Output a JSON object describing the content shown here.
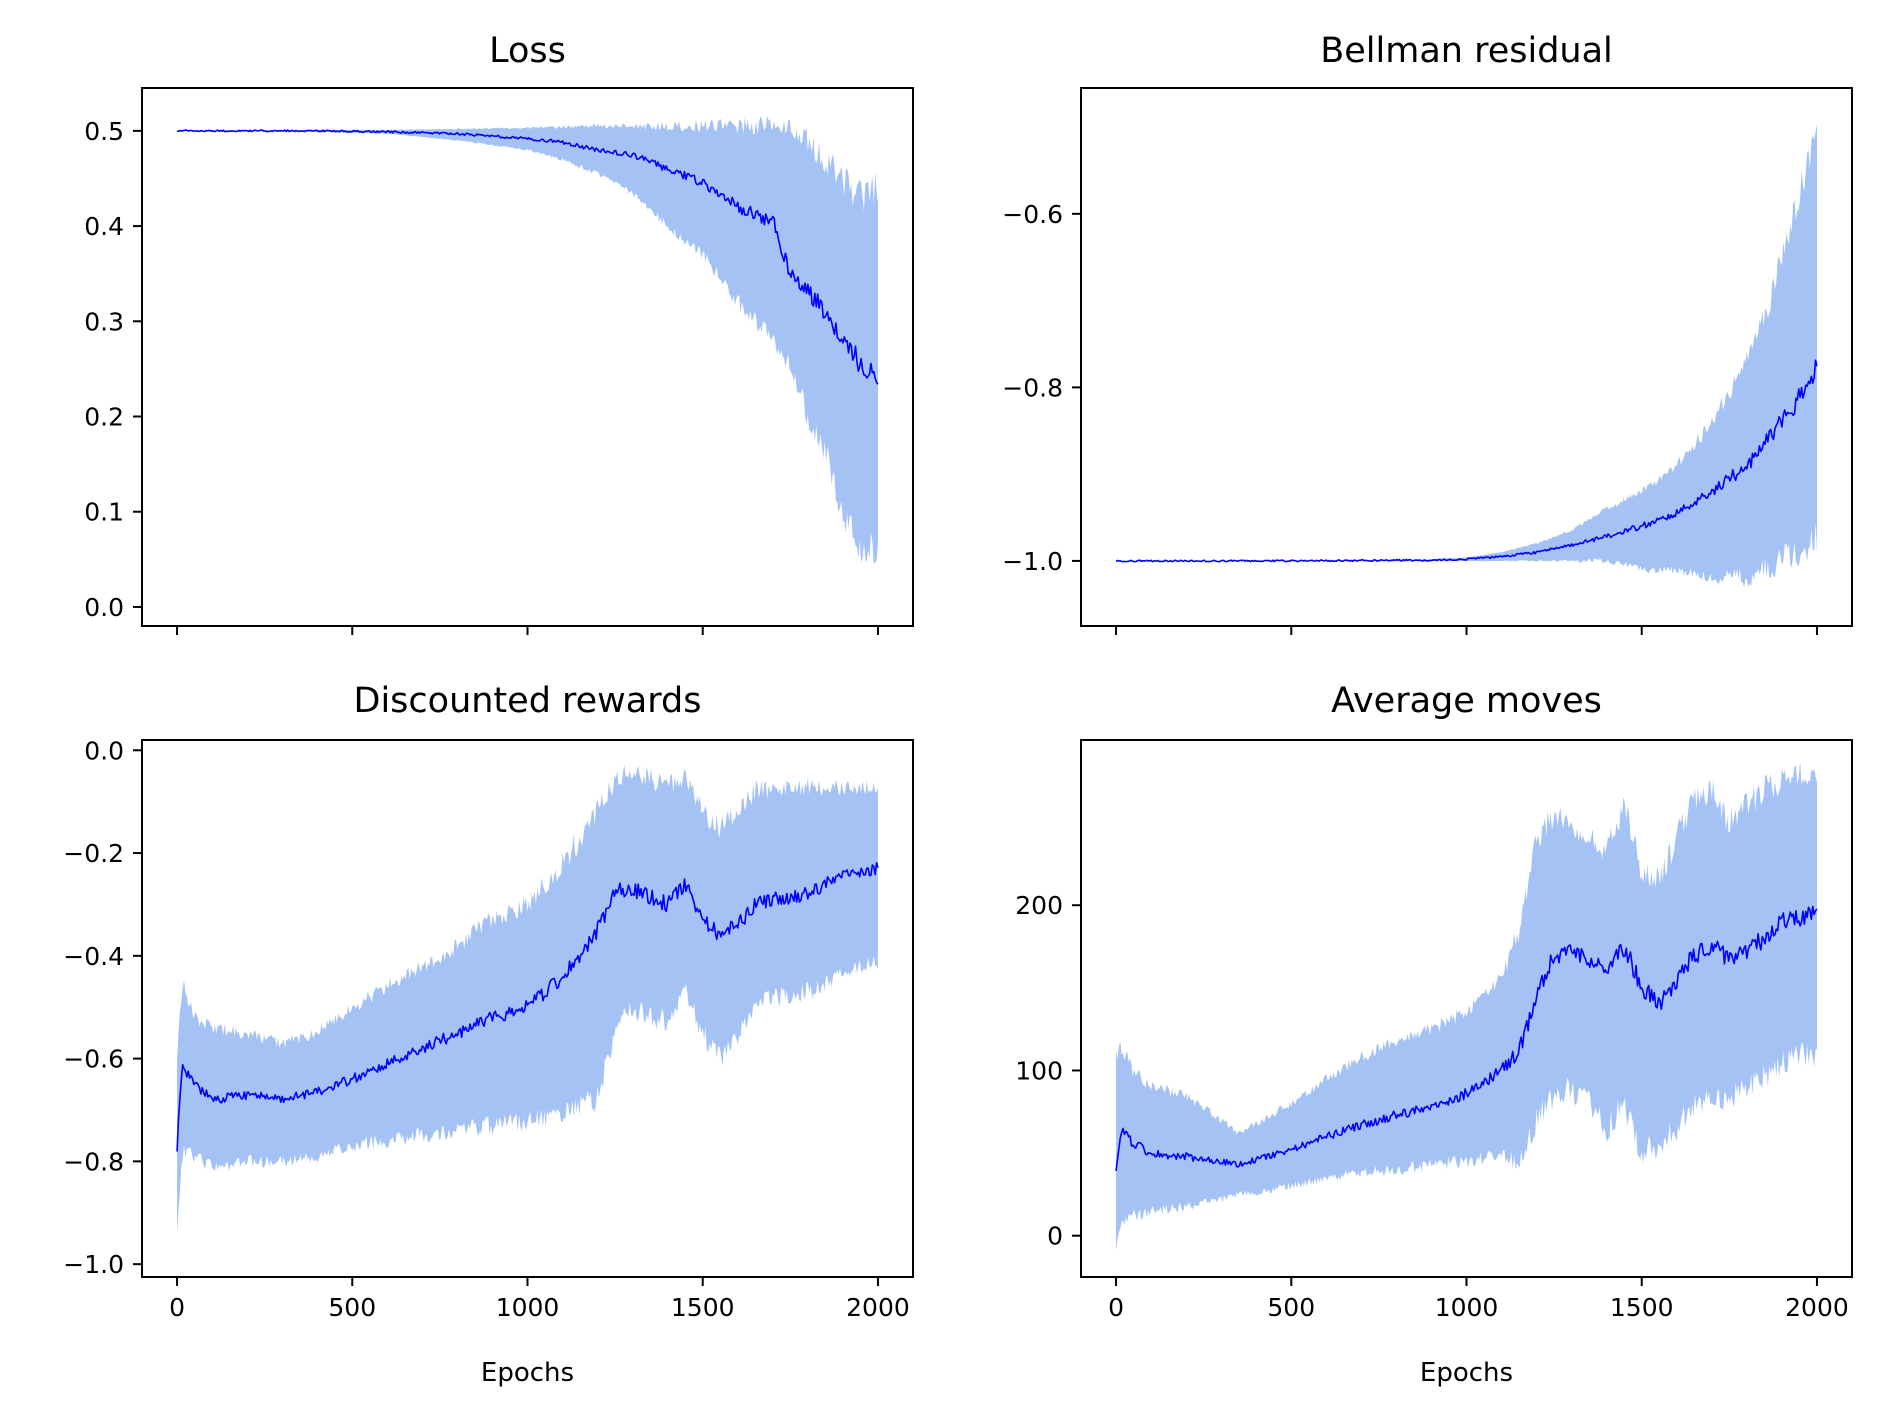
{
  "figure": {
    "background": "#ffffff",
    "band_color": "#a4c2f4",
    "line_color": "#0000ff"
  },
  "chart_data": [
    {
      "id": "loss",
      "type": "line",
      "title": "Loss",
      "xlabel": "",
      "ylabel": "",
      "xlim": [
        -100,
        2100
      ],
      "ylim": [
        -0.02,
        0.545
      ],
      "xticks": [
        0,
        500,
        1000,
        1500,
        2000
      ],
      "xtick_labels": [
        "",
        "",
        "",
        "",
        ""
      ],
      "yticks": [
        0.0,
        0.1,
        0.2,
        0.3,
        0.4,
        0.5
      ],
      "ytick_labels": [
        "0.0",
        "0.1",
        "0.2",
        "0.3",
        "0.4",
        "0.5"
      ],
      "grid": false,
      "series": [
        {
          "style": "mean line with shaded band",
          "x": [
            0,
            200,
            400,
            600,
            800,
            1000,
            1100,
            1200,
            1300,
            1400,
            1500,
            1600,
            1700,
            1750,
            1800,
            1850,
            1900,
            1950,
            2000
          ],
          "mean": [
            0.5,
            0.5,
            0.5,
            0.499,
            0.497,
            0.492,
            0.488,
            0.48,
            0.475,
            0.46,
            0.445,
            0.42,
            0.405,
            0.35,
            0.33,
            0.31,
            0.285,
            0.255,
            0.245
          ],
          "lower": [
            0.5,
            0.5,
            0.499,
            0.497,
            0.49,
            0.48,
            0.47,
            0.455,
            0.435,
            0.4,
            0.37,
            0.32,
            0.28,
            0.25,
            0.2,
            0.16,
            0.1,
            0.06,
            0.06
          ],
          "upper": [
            0.5,
            0.5,
            0.501,
            0.501,
            0.502,
            0.503,
            0.504,
            0.505,
            0.505,
            0.505,
            0.505,
            0.505,
            0.505,
            0.5,
            0.49,
            0.47,
            0.45,
            0.43,
            0.44
          ]
        }
      ]
    },
    {
      "id": "bellman",
      "type": "line",
      "title": "Bellman residual",
      "xlabel": "",
      "ylabel": "",
      "xlim": [
        -100,
        2100
      ],
      "ylim": [
        -1.075,
        -0.455
      ],
      "xticks": [
        0,
        500,
        1000,
        1500,
        2000
      ],
      "xtick_labels": [
        "",
        "",
        "",
        "",
        ""
      ],
      "yticks": [
        -1.0,
        -0.8,
        -0.6
      ],
      "ytick_labels": [
        "−1.0",
        "−0.8",
        "−0.6"
      ],
      "grid": false,
      "series": [
        {
          "style": "mean line with shaded band",
          "x": [
            0,
            500,
            900,
            1000,
            1100,
            1200,
            1300,
            1400,
            1500,
            1600,
            1700,
            1800,
            1850,
            1900,
            1950,
            2000
          ],
          "mean": [
            -1.0,
            -1.0,
            -0.999,
            -0.998,
            -0.995,
            -0.99,
            -0.982,
            -0.972,
            -0.96,
            -0.945,
            -0.92,
            -0.89,
            -0.865,
            -0.84,
            -0.81,
            -0.78
          ],
          "lower": [
            -1.0,
            -1.0,
            -1.0,
            -1.0,
            -1.0,
            -1.0,
            -1.0,
            -1.0,
            -1.01,
            -1.01,
            -1.02,
            -1.02,
            -1.01,
            -1.0,
            -0.99,
            -0.97
          ],
          "upper": [
            -1.0,
            -1.0,
            -0.998,
            -0.996,
            -0.99,
            -0.98,
            -0.965,
            -0.94,
            -0.92,
            -0.89,
            -0.84,
            -0.77,
            -0.72,
            -0.65,
            -0.58,
            -0.5
          ]
        }
      ]
    },
    {
      "id": "rewards",
      "type": "line",
      "title": "Discounted rewards",
      "xlabel": "Epochs",
      "ylabel": "",
      "xlim": [
        -100,
        2100
      ],
      "ylim": [
        -1.025,
        0.02
      ],
      "xticks": [
        0,
        500,
        1000,
        1500,
        2000
      ],
      "xtick_labels": [
        "0",
        "500",
        "1000",
        "1500",
        "2000"
      ],
      "yticks": [
        -1.0,
        -0.8,
        -0.6,
        -0.4,
        -0.2,
        0.0
      ],
      "ytick_labels": [
        "−1.0",
        "−0.8",
        "−0.6",
        "−0.4",
        "−0.2",
        "0.0"
      ],
      "grid": false,
      "series": [
        {
          "style": "mean line with shaded band",
          "x": [
            0,
            15,
            50,
            100,
            200,
            300,
            400,
            500,
            600,
            700,
            800,
            900,
            1000,
            1100,
            1200,
            1250,
            1300,
            1400,
            1450,
            1500,
            1550,
            1600,
            1650,
            1700,
            1800,
            1900,
            2000
          ],
          "mean": [
            -0.77,
            -0.62,
            -0.65,
            -0.68,
            -0.67,
            -0.68,
            -0.665,
            -0.64,
            -0.61,
            -0.58,
            -0.55,
            -0.52,
            -0.5,
            -0.44,
            -0.35,
            -0.27,
            -0.27,
            -0.3,
            -0.26,
            -0.33,
            -0.36,
            -0.34,
            -0.3,
            -0.29,
            -0.28,
            -0.24,
            -0.23
          ],
          "lower": [
            -0.95,
            -0.78,
            -0.79,
            -0.81,
            -0.8,
            -0.8,
            -0.79,
            -0.77,
            -0.76,
            -0.75,
            -0.74,
            -0.73,
            -0.72,
            -0.71,
            -0.68,
            -0.55,
            -0.5,
            -0.53,
            -0.46,
            -0.55,
            -0.6,
            -0.56,
            -0.5,
            -0.48,
            -0.47,
            -0.43,
            -0.41
          ],
          "upper": [
            -0.6,
            -0.45,
            -0.52,
            -0.54,
            -0.55,
            -0.57,
            -0.55,
            -0.5,
            -0.46,
            -0.42,
            -0.38,
            -0.33,
            -0.3,
            -0.22,
            -0.12,
            -0.05,
            -0.04,
            -0.07,
            -0.05,
            -0.12,
            -0.15,
            -0.12,
            -0.08,
            -0.08,
            -0.07,
            -0.07,
            -0.07
          ]
        }
      ]
    },
    {
      "id": "moves",
      "type": "line",
      "title": "Average moves",
      "xlabel": "Epochs",
      "ylabel": "",
      "xlim": [
        -100,
        2100
      ],
      "ylim": [
        -25,
        300
      ],
      "xticks": [
        0,
        500,
        1000,
        1500,
        2000
      ],
      "xtick_labels": [
        "0",
        "500",
        "1000",
        "1500",
        "2000"
      ],
      "yticks": [
        0,
        100,
        200
      ],
      "ytick_labels": [
        "0",
        "100",
        "200"
      ],
      "grid": false,
      "series": [
        {
          "style": "mean line with shaded band",
          "x": [
            0,
            15,
            50,
            100,
            200,
            300,
            350,
            400,
            500,
            600,
            700,
            800,
            900,
            1000,
            1100,
            1150,
            1200,
            1250,
            1300,
            1350,
            1400,
            1450,
            1500,
            1550,
            1600,
            1650,
            1700,
            1750,
            1800,
            1850,
            1900,
            1950,
            2000
          ],
          "mean": [
            38,
            63,
            56,
            50,
            48,
            45,
            43,
            46,
            52,
            60,
            67,
            73,
            78,
            86,
            100,
            112,
            145,
            170,
            172,
            168,
            160,
            175,
            150,
            140,
            155,
            170,
            175,
            168,
            172,
            180,
            190,
            192,
            195
          ],
          "lower": [
            -10,
            10,
            12,
            15,
            18,
            22,
            25,
            26,
            30,
            35,
            38,
            40,
            43,
            45,
            48,
            45,
            70,
            85,
            88,
            80,
            65,
            80,
            50,
            55,
            65,
            80,
            85,
            82,
            90,
            95,
            105,
            110,
            110
          ],
          "upper": [
            110,
            115,
            100,
            90,
            85,
            70,
            62,
            68,
            80,
            95,
            108,
            118,
            125,
            135,
            155,
            185,
            240,
            255,
            250,
            240,
            235,
            260,
            220,
            215,
            240,
            265,
            270,
            250,
            260,
            270,
            275,
            280,
            280
          ]
        }
      ]
    }
  ]
}
